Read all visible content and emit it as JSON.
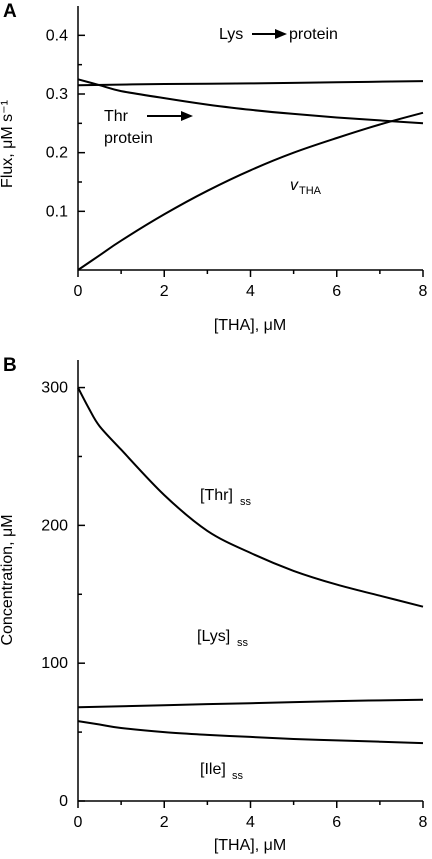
{
  "chart_data": [
    {
      "type": "line",
      "panel": "A",
      "xlabel": "[THA], μM",
      "ylabel": "Flux, μM s⁻¹",
      "xlim": [
        0,
        8
      ],
      "ylim": [
        0,
        0.45
      ],
      "xticks": [
        "0",
        "2",
        "4",
        "6",
        "8"
      ],
      "yticks": [
        "0.1",
        "0.2",
        "0.3",
        "0.4"
      ],
      "series": [
        {
          "name": "Lys → protein",
          "x": [
            0,
            2,
            4,
            6,
            8
          ],
          "y": [
            0.315,
            0.317,
            0.318,
            0.32,
            0.322
          ]
        },
        {
          "name": "Thr → protein",
          "x": [
            0,
            0.5,
            1,
            2,
            3,
            4,
            5,
            6,
            7,
            8
          ],
          "y": [
            0.325,
            0.315,
            0.305,
            0.293,
            0.282,
            0.273,
            0.266,
            0.26,
            0.255,
            0.25
          ]
        },
        {
          "name": "vTHA",
          "x": [
            0,
            0.5,
            1,
            2,
            3,
            4,
            5,
            6,
            7,
            8
          ],
          "y": [
            0,
            0.025,
            0.05,
            0.095,
            0.135,
            0.17,
            0.2,
            0.225,
            0.248,
            0.268
          ]
        }
      ],
      "annotations": {
        "lys": {
          "main": "Lys",
          "tail": "protein"
        },
        "thr": {
          "line1": "Thr",
          "line2": "protein"
        },
        "vtha": {
          "main": "v",
          "sub": "THA"
        }
      },
      "grid": false
    },
    {
      "type": "line",
      "panel": "B",
      "xlabel": "[THA], μM",
      "ylabel": "Concentration, μM",
      "xlim": [
        0,
        8
      ],
      "ylim": [
        0,
        320
      ],
      "xticks": [
        "0",
        "2",
        "4",
        "6",
        "8"
      ],
      "yticks": [
        "0",
        "100",
        "200",
        "300"
      ],
      "series": [
        {
          "name": "[Thr]ss",
          "x": [
            0,
            0.25,
            0.5,
            1,
            2,
            3,
            4,
            5,
            6,
            7,
            8
          ],
          "y": [
            300,
            285,
            272,
            255,
            222,
            196,
            180,
            167,
            157,
            149,
            141
          ]
        },
        {
          "name": "[Lys]ss",
          "x": [
            0,
            2,
            4,
            6,
            8
          ],
          "y": [
            68,
            69.5,
            71,
            72.5,
            73.5
          ]
        },
        {
          "name": "[Ile]ss",
          "x": [
            0,
            0.5,
            1,
            2,
            3,
            4,
            5,
            6,
            7,
            8
          ],
          "y": [
            58,
            55.5,
            53,
            50,
            48,
            46.5,
            45,
            44,
            43,
            42
          ]
        }
      ],
      "annotations": {
        "thr": {
          "main": "[Thr]",
          "sub": "ss"
        },
        "lys": {
          "main": "[Lys]",
          "sub": "ss"
        },
        "ile": {
          "main": "[Ile]",
          "sub": "ss"
        }
      },
      "grid": false
    }
  ]
}
